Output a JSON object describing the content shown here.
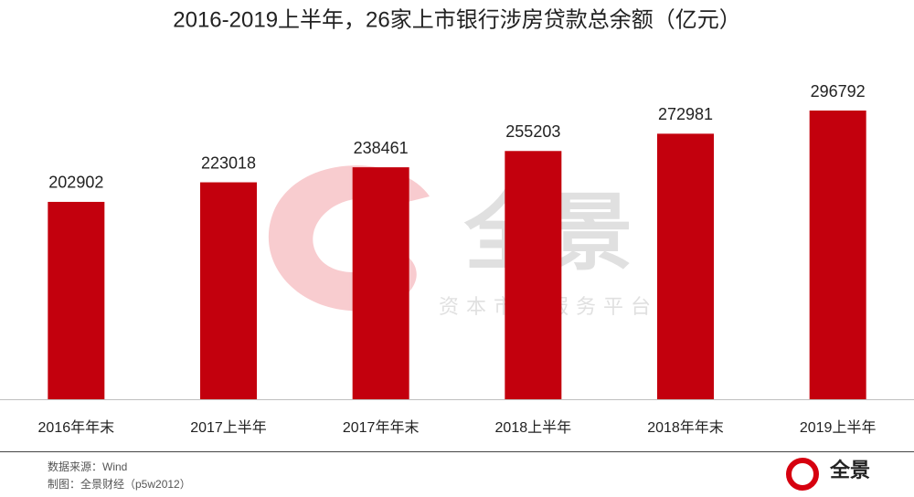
{
  "chart_data": {
    "type": "bar",
    "title": "2016-2019上半年，26家上市银行涉房贷款总余额（亿元）",
    "categories": [
      "2016年年末",
      "2017上半年",
      "2017年年末",
      "2018上半年",
      "2018年年末",
      "2019上半年"
    ],
    "values": [
      202902,
      223018,
      238461,
      255203,
      272981,
      296792
    ],
    "color": "#c3000d",
    "source": "数据来源：Wind",
    "credit": "制图：全景财经（p5w2012）",
    "watermark": {
      "brand": "全景",
      "tagline": "资本市场服务平台"
    },
    "logo": "全景"
  }
}
